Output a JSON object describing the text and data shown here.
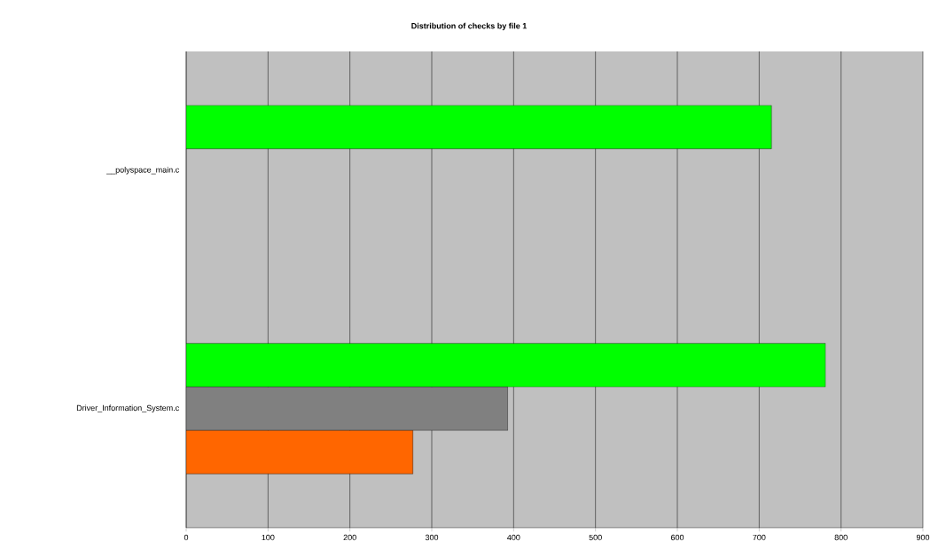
{
  "chart_data": {
    "type": "bar",
    "orientation": "horizontal",
    "title": "Distribution of checks by file 1",
    "categories": [
      "__polyspace_main.c",
      "Driver_Information_System.c"
    ],
    "series": [
      {
        "color": "#00ff00",
        "values": [
          715,
          781
        ]
      },
      {
        "color": "#808080",
        "values": [
          null,
          393
        ]
      },
      {
        "color": "#ff6600",
        "values": [
          null,
          277
        ]
      }
    ],
    "xlim": [
      0,
      900
    ],
    "xticks": [
      0,
      100,
      200,
      300,
      400,
      500,
      600,
      700,
      800,
      900
    ],
    "grid": "x"
  }
}
